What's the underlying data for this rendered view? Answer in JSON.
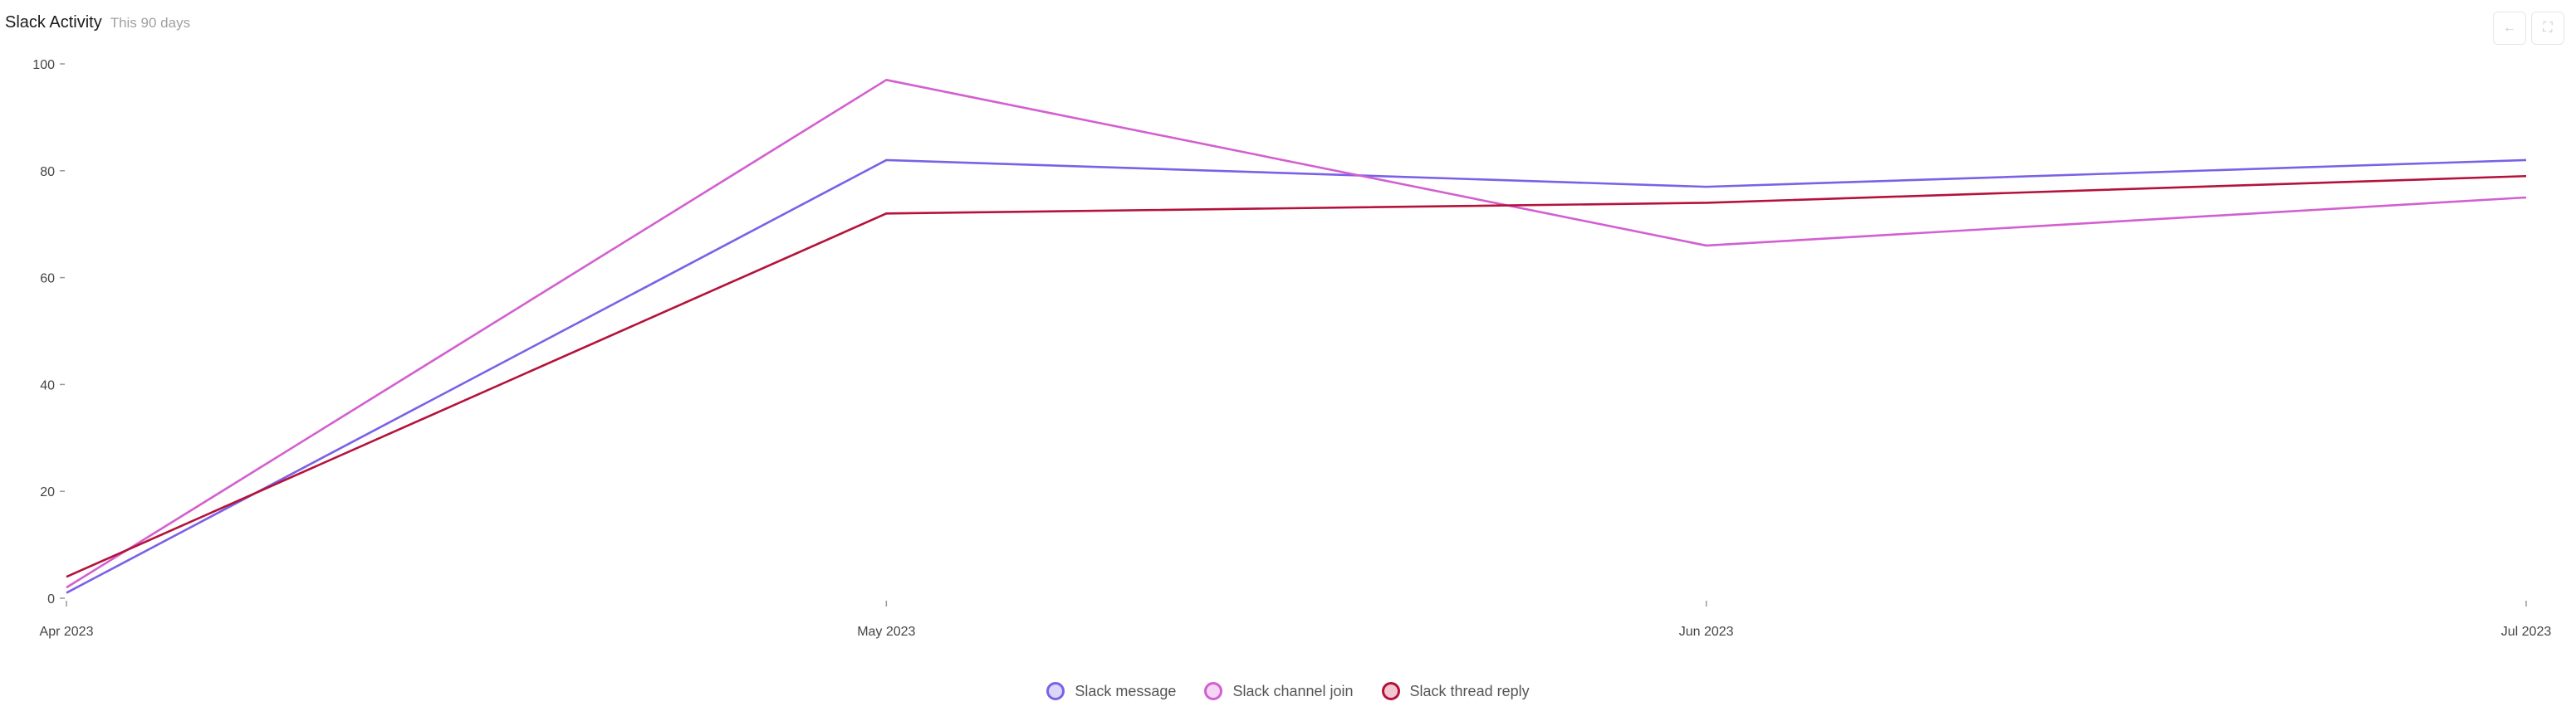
{
  "header": {
    "title": "Slack Activity",
    "subtitle": "This 90 days"
  },
  "toolbar": [
    {
      "name": "back-icon",
      "glyph": "←"
    },
    {
      "name": "fullscreen-icon",
      "glyph": "⛶"
    }
  ],
  "chart_data": {
    "type": "line",
    "title": "Slack Activity",
    "subtitle": "This 90 days",
    "xlabel": "",
    "ylabel": "",
    "categories": [
      "Apr 2023",
      "May 2023",
      "Jun 2023",
      "Jul 2023"
    ],
    "ylim": [
      0,
      100
    ],
    "yticks": [
      0,
      20,
      40,
      60,
      80,
      100
    ],
    "grid": false,
    "legend": "bottom-center",
    "series": [
      {
        "name": "Slack message",
        "color": "#7b61e6",
        "fill": "#dcd6f8",
        "values": [
          1,
          82,
          77,
          82
        ]
      },
      {
        "name": "Slack channel join",
        "color": "#d35fd0",
        "fill": "#f6d6f5",
        "values": [
          2,
          97,
          66,
          75
        ]
      },
      {
        "name": "Slack thread reply",
        "color": "#b5123a",
        "fill": "#f3c6d1",
        "values": [
          4,
          72,
          74,
          79
        ]
      }
    ]
  }
}
